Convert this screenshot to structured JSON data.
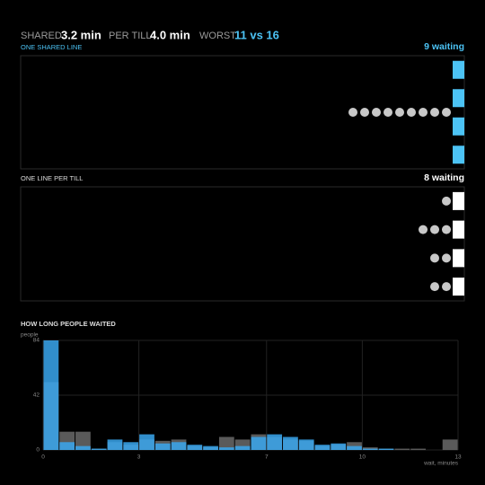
{
  "header": {
    "stats": [
      {
        "label": "SHARED",
        "value": "3.2 min"
      },
      {
        "label": "PER TILL",
        "value": "4.0 min"
      },
      {
        "label": "WORST",
        "value": "11 vs 16"
      }
    ]
  },
  "panels": [
    {
      "title": "ONE SHARED LINE",
      "status": "9 waiting",
      "tills": 4,
      "till_color": "#4cc3f5",
      "queues": [
        9
      ]
    },
    {
      "title": "ONE LINE PER TILL",
      "status": "8 waiting",
      "tills": 4,
      "till_color": "#ffffff",
      "queues": [
        1,
        3,
        2,
        2
      ]
    }
  ],
  "chart_data": {
    "type": "histogram",
    "title": "HOW LONG PEOPLE WAITED",
    "y_label": "people",
    "x_label": "wait, minutes",
    "bins": [
      0,
      0.5,
      1,
      1.5,
      2,
      2.5,
      3,
      3.5,
      4,
      4.5,
      5,
      5.5,
      6,
      6.5,
      7,
      7.5,
      8,
      8.5,
      9,
      9.5,
      10,
      10.5,
      11,
      11.5,
      12,
      12.5,
      13
    ],
    "series": [
      {
        "name": "per till",
        "color": "#5a5a5a",
        "values": [
          52,
          14,
          14,
          1,
          6,
          4,
          8,
          7,
          8,
          3,
          2,
          10,
          8,
          12,
          10,
          8,
          7,
          3,
          4,
          6,
          2,
          1,
          1,
          1,
          0,
          8
        ]
      },
      {
        "name": "shared",
        "color": "#3aa7ee",
        "values": [
          84,
          6,
          3,
          1,
          8,
          6,
          12,
          5,
          6,
          4,
          3,
          2,
          3,
          10,
          12,
          10,
          8,
          4,
          5,
          3,
          1,
          1,
          0,
          0,
          0,
          0
        ]
      }
    ],
    "xlim": [
      0,
      13
    ],
    "ylim": [
      0,
      84
    ],
    "xticks": [
      0,
      3,
      7,
      10,
      13
    ],
    "yticks": [
      0,
      42,
      84
    ],
    "grid": true
  }
}
